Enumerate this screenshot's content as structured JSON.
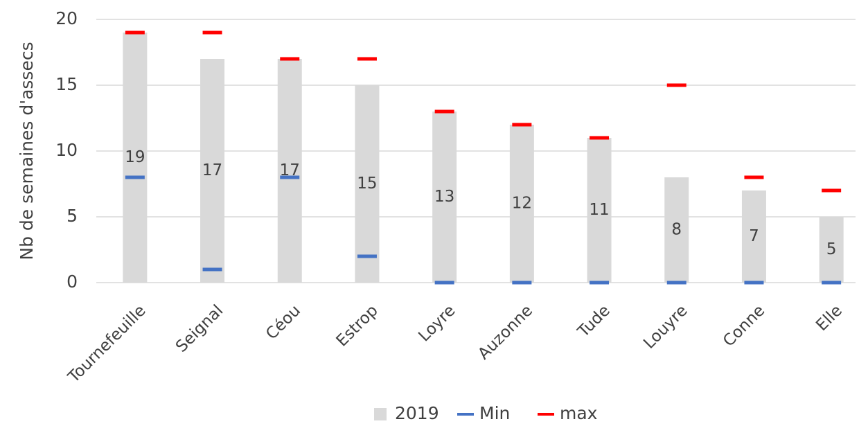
{
  "chart_data": {
    "type": "bar",
    "y_label": "Nb de semaines d'assecs",
    "categories": [
      "Tournefeuille",
      "Seignal",
      "Céou",
      "Estrop",
      "Loyre",
      "Auzonne",
      "Tude",
      "Louyre",
      "Conne",
      "Elle"
    ],
    "series": [
      {
        "name": "2019",
        "color": "#d9d9d9",
        "mark": "bar",
        "values": [
          19,
          17,
          17,
          15,
          13,
          12,
          11,
          8,
          7,
          5
        ]
      },
      {
        "name": "Min",
        "color": "#4472c4",
        "mark": "dash",
        "values": [
          8,
          1,
          8,
          2,
          0,
          0,
          0,
          0,
          0,
          0
        ]
      },
      {
        "name": "max",
        "color": "#ff0000",
        "mark": "dash",
        "values": [
          19,
          19,
          17,
          17,
          13,
          12,
          11,
          15,
          8,
          7
        ]
      }
    ],
    "ylim": [
      0,
      20
    ],
    "yticks": [
      0,
      5,
      10,
      15,
      20
    ],
    "grid": true,
    "legend": "bottom"
  }
}
